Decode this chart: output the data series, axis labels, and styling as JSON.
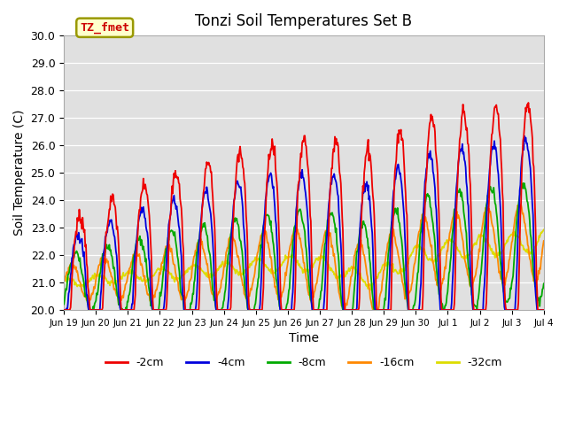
{
  "title": "Tonzi Soil Temperatures Set B",
  "xlabel": "Time",
  "ylabel": "Soil Temperature (C)",
  "ylim": [
    20.0,
    30.0
  ],
  "yticks": [
    20.0,
    21.0,
    22.0,
    23.0,
    24.0,
    25.0,
    26.0,
    27.0,
    28.0,
    29.0,
    30.0
  ],
  "label_text": "TZ_fmet",
  "label_bg": "#ffffcc",
  "label_border": "#999900",
  "bg_color": "#e0e0e0",
  "lines": {
    "-2cm": {
      "color": "#ee0000",
      "lw": 1.3
    },
    "-4cm": {
      "color": "#0000dd",
      "lw": 1.3
    },
    "-8cm": {
      "color": "#00aa00",
      "lw": 1.3
    },
    "-16cm": {
      "color": "#ff8800",
      "lw": 1.3
    },
    "-32cm": {
      "color": "#dddd00",
      "lw": 1.3
    }
  },
  "xtick_labels": [
    "Jun 19",
    "Jun 20",
    "Jun 21",
    "Jun 22",
    "Jun 23",
    "Jun 24",
    "Jun 25",
    "Jun 26",
    "Jun 27",
    "Jun 28",
    "Jun 29",
    "Jun 30",
    "Jul 1",
    "Jul 2",
    "Jul 3",
    "Jul 4"
  ],
  "n_days": 15,
  "n_points": 720
}
